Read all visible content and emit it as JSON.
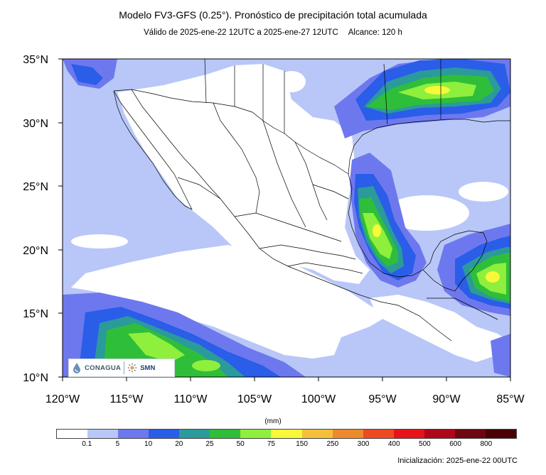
{
  "title": "Modelo FV3-GFS (0.25°). Pronóstico de precipitación total acumulada",
  "subtitle": {
    "valid": "Válido de 2025-ene-22 12UTC a 2025-ene-27 12UTC",
    "range": "Alcance: 120 h"
  },
  "axes": {
    "lon_labels": [
      "120°W",
      "115°W",
      "110°W",
      "105°W",
      "100°W",
      "95°W",
      "90°W",
      "85°W"
    ],
    "lat_labels": [
      "35°N",
      "30°N",
      "25°N",
      "20°N",
      "15°N",
      "10°N"
    ],
    "lon_range": [
      -120,
      -85
    ],
    "lat_range": [
      10,
      35
    ]
  },
  "legend": {
    "unit": "(mm)",
    "labels": [
      "0.1",
      "5",
      "10",
      "20",
      "25",
      "50",
      "75",
      "150",
      "250",
      "300",
      "400",
      "500",
      "600",
      "800"
    ],
    "colors": [
      "#ffffff",
      "#b8c7f7",
      "#6e78ee",
      "#2a5de8",
      "#2b9a9b",
      "#2fbe3a",
      "#8ef03c",
      "#f8f83a",
      "#f4c03a",
      "#ef8a2c",
      "#ee4a22",
      "#e8121a",
      "#b0061a",
      "#6e0612",
      "#4a0004"
    ]
  },
  "initialization": "Inicialización: 2025-ene-22 00UTC",
  "logos": {
    "conagua": "CONAGUA",
    "smn": "SMN"
  },
  "colors": {
    "land": "#ffffff",
    "ocean_light": "#b8c7f7",
    "border": "#000000"
  }
}
